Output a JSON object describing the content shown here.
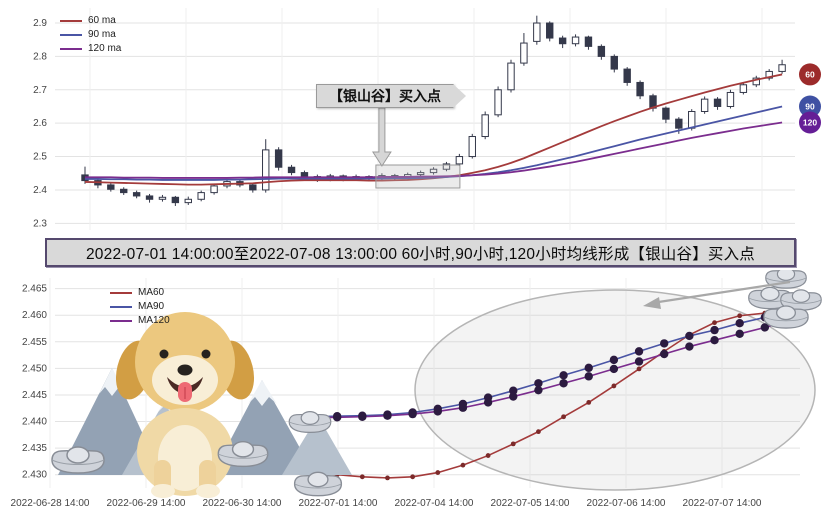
{
  "banner": {
    "text": "2022-07-01 14:00:00至2022-07-08 13:00:00 60小时,90小时,120小时均线形成【银山谷】买入点"
  },
  "chart_data": [
    {
      "id": "hourly-candlestick",
      "type": "candlestick",
      "title": "",
      "ylim": [
        2.28,
        2.945
      ],
      "yticks": [
        "2.3",
        "2.4",
        "2.5",
        "2.6",
        "2.7",
        "2.8",
        "2.9"
      ],
      "grid": true,
      "legend_position": "upper-left",
      "legend": [
        {
          "label": "60 ma",
          "color": "#a43b3b"
        },
        {
          "label": "90 ma",
          "color": "#4a55a5"
        },
        {
          "label": "120 ma",
          "color": "#7b2d8e"
        }
      ],
      "annotation": {
        "text": "【银山谷】买入点",
        "target_candle_index": 23
      },
      "right_badges": [
        {
          "label": "60",
          "color": "#9c2b2b",
          "value": 2.746
        },
        {
          "label": "90",
          "color": "#3f51a3",
          "value": 2.65
        },
        {
          "label": "120",
          "color": "#651e96",
          "value": 2.602
        }
      ],
      "candles_ohlc": [
        [
          2.445,
          2.47,
          2.418,
          2.428
        ],
        [
          2.428,
          2.434,
          2.405,
          2.415
        ],
        [
          2.415,
          2.42,
          2.395,
          2.402
        ],
        [
          2.402,
          2.408,
          2.385,
          2.392
        ],
        [
          2.392,
          2.398,
          2.375,
          2.382
        ],
        [
          2.382,
          2.388,
          2.362,
          2.372
        ],
        [
          2.372,
          2.385,
          2.365,
          2.378
        ],
        [
          2.378,
          2.382,
          2.352,
          2.362
        ],
        [
          2.362,
          2.38,
          2.355,
          2.372
        ],
        [
          2.372,
          2.398,
          2.366,
          2.392
        ],
        [
          2.392,
          2.418,
          2.386,
          2.412
        ],
        [
          2.412,
          2.432,
          2.405,
          2.425
        ],
        [
          2.425,
          2.43,
          2.408,
          2.415
        ],
        [
          2.415,
          2.42,
          2.392,
          2.4
        ],
        [
          2.4,
          2.552,
          2.392,
          2.52
        ],
        [
          2.52,
          2.528,
          2.458,
          2.468
        ],
        [
          2.468,
          2.475,
          2.444,
          2.452
        ],
        [
          2.452,
          2.458,
          2.432,
          2.44
        ],
        [
          2.44,
          2.446,
          2.424,
          2.432
        ],
        [
          2.432,
          2.448,
          2.426,
          2.442
        ],
        [
          2.442,
          2.446,
          2.426,
          2.434
        ],
        [
          2.434,
          2.446,
          2.428,
          2.44
        ],
        [
          2.44,
          2.444,
          2.426,
          2.435
        ],
        [
          2.435,
          2.45,
          2.428,
          2.443
        ],
        [
          2.443,
          2.448,
          2.43,
          2.438
        ],
        [
          2.438,
          2.452,
          2.432,
          2.446
        ],
        [
          2.446,
          2.458,
          2.44,
          2.452
        ],
        [
          2.452,
          2.468,
          2.446,
          2.462
        ],
        [
          2.462,
          2.484,
          2.456,
          2.478
        ],
        [
          2.478,
          2.508,
          2.472,
          2.5
        ],
        [
          2.5,
          2.568,
          2.494,
          2.56
        ],
        [
          2.56,
          2.635,
          2.552,
          2.625
        ],
        [
          2.625,
          2.71,
          2.618,
          2.7
        ],
        [
          2.7,
          2.79,
          2.692,
          2.78
        ],
        [
          2.78,
          2.87,
          2.772,
          2.84
        ],
        [
          2.845,
          2.922,
          2.835,
          2.9
        ],
        [
          2.9,
          2.905,
          2.845,
          2.855
        ],
        [
          2.855,
          2.862,
          2.825,
          2.838
        ],
        [
          2.838,
          2.866,
          2.83,
          2.858
        ],
        [
          2.858,
          2.862,
          2.82,
          2.83
        ],
        [
          2.83,
          2.836,
          2.79,
          2.8
        ],
        [
          2.8,
          2.806,
          2.752,
          2.762
        ],
        [
          2.762,
          2.768,
          2.712,
          2.722
        ],
        [
          2.722,
          2.728,
          2.672,
          2.682
        ],
        [
          2.682,
          2.688,
          2.635,
          2.645
        ],
        [
          2.645,
          2.65,
          2.6,
          2.612
        ],
        [
          2.612,
          2.618,
          2.568,
          2.585
        ],
        [
          2.585,
          2.642,
          2.578,
          2.635
        ],
        [
          2.635,
          2.68,
          2.628,
          2.672
        ],
        [
          2.672,
          2.678,
          2.64,
          2.65
        ],
        [
          2.65,
          2.7,
          2.644,
          2.692
        ],
        [
          2.692,
          2.722,
          2.686,
          2.715
        ],
        [
          2.715,
          2.742,
          2.708,
          2.735
        ],
        [
          2.735,
          2.762,
          2.728,
          2.755
        ],
        [
          2.755,
          2.79,
          2.748,
          2.775
        ]
      ],
      "series": [
        {
          "name": "60 ma",
          "color": "#a43b3b",
          "values": [
            2.424,
            2.423,
            2.422,
            2.421,
            2.42,
            2.419,
            2.418,
            2.417,
            2.416,
            2.416,
            2.417,
            2.418,
            2.419,
            2.42,
            2.423,
            2.426,
            2.428,
            2.429,
            2.429,
            2.429,
            2.429,
            2.429,
            2.428,
            2.428,
            2.429,
            2.43,
            2.432,
            2.435,
            2.439,
            2.444,
            2.451,
            2.459,
            2.469,
            2.481,
            2.495,
            2.511,
            2.527,
            2.543,
            2.559,
            2.575,
            2.591,
            2.606,
            2.62,
            2.634,
            2.647,
            2.659,
            2.67,
            2.681,
            2.692,
            2.702,
            2.712,
            2.721,
            2.73,
            2.738,
            2.746
          ]
        },
        {
          "name": "90 ma",
          "color": "#4a55a5",
          "values": [
            2.433,
            2.433,
            2.432,
            2.432,
            2.431,
            2.431,
            2.43,
            2.43,
            2.43,
            2.43,
            2.43,
            2.431,
            2.431,
            2.432,
            2.433,
            2.434,
            2.434,
            2.434,
            2.434,
            2.434,
            2.434,
            2.434,
            2.434,
            2.434,
            2.435,
            2.435,
            2.436,
            2.437,
            2.439,
            2.441,
            2.444,
            2.448,
            2.453,
            2.459,
            2.466,
            2.474,
            2.483,
            2.492,
            2.501,
            2.511,
            2.521,
            2.531,
            2.541,
            2.551,
            2.56,
            2.569,
            2.578,
            2.587,
            2.596,
            2.605,
            2.614,
            2.623,
            2.632,
            2.641,
            2.65
          ]
        },
        {
          "name": "120 ma",
          "color": "#7b2d8e",
          "values": [
            2.438,
            2.438,
            2.438,
            2.437,
            2.437,
            2.437,
            2.436,
            2.436,
            2.436,
            2.436,
            2.436,
            2.436,
            2.437,
            2.437,
            2.438,
            2.438,
            2.438,
            2.438,
            2.438,
            2.438,
            2.438,
            2.438,
            2.438,
            2.439,
            2.439,
            2.439,
            2.44,
            2.44,
            2.441,
            2.442,
            2.444,
            2.446,
            2.449,
            2.453,
            2.458,
            2.464,
            2.47,
            2.477,
            2.484,
            2.492,
            2.5,
            2.508,
            2.516,
            2.524,
            2.532,
            2.54,
            2.548,
            2.556,
            2.563,
            2.57,
            2.577,
            2.584,
            2.59,
            2.596,
            2.602
          ]
        }
      ]
    },
    {
      "id": "ma-zoom",
      "type": "line",
      "title": "",
      "ylim": [
        2.4275,
        2.467
      ],
      "yticks": [
        "2.430",
        "2.435",
        "2.440",
        "2.445",
        "2.450",
        "2.455",
        "2.460",
        "2.465"
      ],
      "xticklabels": [
        "2022-06-28 14:00",
        "2022-06-29 14:00",
        "2022-06-30 14:00",
        "2022-07-01 14:00",
        "2022-07-04 14:00",
        "2022-07-05 14:00",
        "2022-07-06 14:00",
        "2022-07-07 14:00"
      ],
      "grid": true,
      "legend_position": "upper-left",
      "legend": [
        {
          "label": "MA60",
          "color": "#a43b3b"
        },
        {
          "label": "MA90",
          "color": "#4a55a5"
        },
        {
          "label": "MA120",
          "color": "#7b2d8e"
        }
      ],
      "series": [
        {
          "name": "MA60",
          "color": "#a43b3b",
          "marker_radius": 2.4,
          "marker_color": "#7c2a2a",
          "values": [
            2.4304,
            2.43,
            2.4296,
            2.4294,
            2.4296,
            2.4304,
            2.4318,
            2.4336,
            2.4358,
            2.4381,
            2.4409,
            2.4436,
            2.4467,
            2.4499,
            2.4532,
            2.4563,
            2.4586,
            2.4599,
            2.4604,
            2.4608
          ]
        },
        {
          "name": "MA90",
          "color": "#4a55a5",
          "marker_radius": 4.2,
          "marker_color": "#2c1b40",
          "values": [
            2.4409,
            2.441,
            2.4411,
            2.4413,
            2.4417,
            2.4424,
            2.4433,
            2.4445,
            2.4458,
            2.4472,
            2.4487,
            2.4501,
            2.4516,
            2.4532,
            2.4547,
            2.4561,
            2.4572,
            2.4585,
            2.4596,
            2.4607
          ]
        },
        {
          "name": "MA120",
          "color": "#7b2d8e",
          "marker_radius": 4.2,
          "marker_color": "#2c1b40",
          "values": [
            2.4407,
            2.4408,
            2.4409,
            2.4411,
            2.4414,
            2.4419,
            2.4426,
            2.4436,
            2.4447,
            2.4459,
            2.4472,
            2.4485,
            2.4499,
            2.4513,
            2.4527,
            2.4541,
            2.4553,
            2.4565,
            2.4577,
            2.459
          ]
        }
      ]
    }
  ]
}
